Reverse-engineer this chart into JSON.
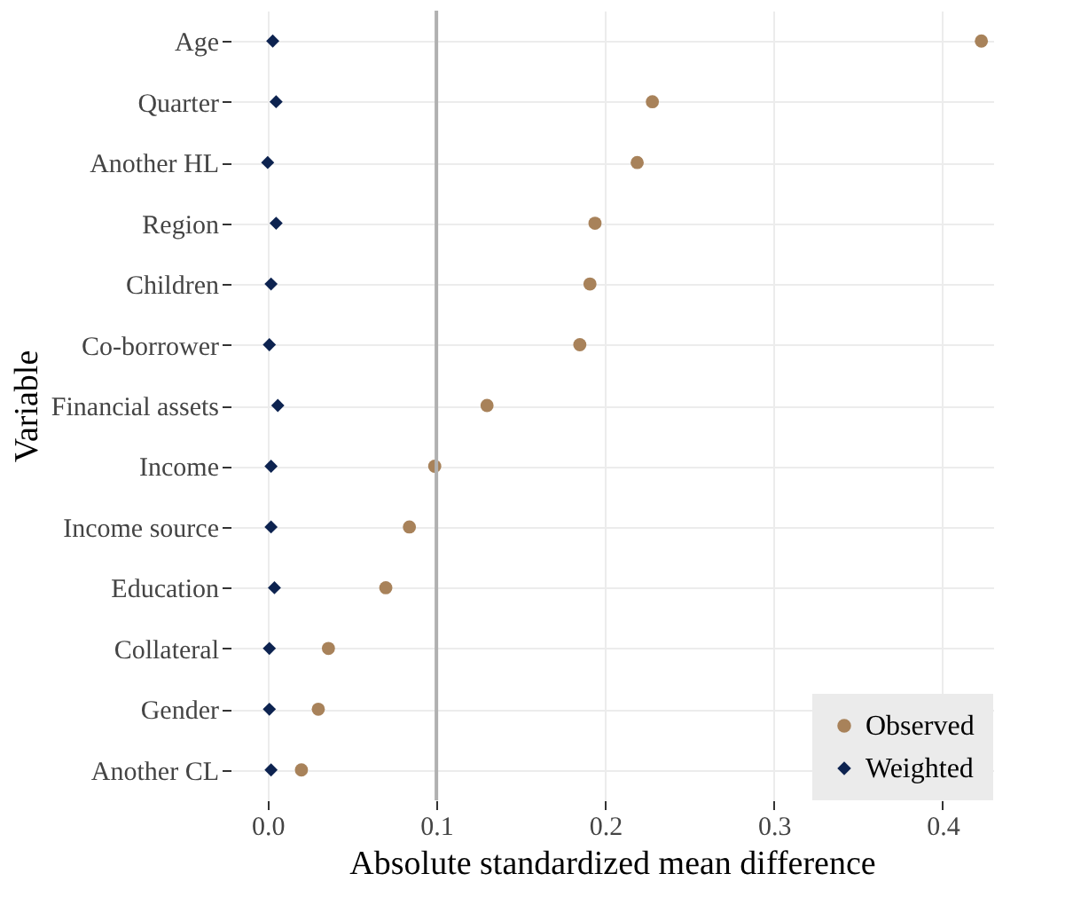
{
  "chart_data": {
    "type": "scatter",
    "orientation": "horizontal",
    "xlabel": "Absolute standardized mean difference",
    "ylabel": "Variable",
    "categories": [
      "Age",
      "Quarter",
      "Another HL",
      "Region",
      "Children",
      "Co-borrower",
      "Financial assets",
      "Income",
      "Income source",
      "Education",
      "Collateral",
      "Gender",
      "Another CL"
    ],
    "series": [
      {
        "name": "Observed",
        "color": "#a8825a",
        "marker": "circle",
        "values": [
          0.423,
          0.228,
          0.219,
          0.194,
          0.191,
          0.185,
          0.13,
          0.099,
          0.084,
          0.07,
          0.036,
          0.03,
          0.02
        ]
      },
      {
        "name": "Weighted",
        "color": "#0d2350",
        "marker": "diamond",
        "values": [
          0.003,
          0.005,
          0.0,
          0.005,
          0.002,
          0.001,
          0.006,
          0.002,
          0.002,
          0.004,
          0.001,
          0.001,
          0.002
        ]
      }
    ],
    "xlim": [
      -0.022,
      0.43
    ],
    "xticks": [
      {
        "value": 0,
        "label": "0.0"
      },
      0.1,
      0.2,
      0.3,
      0.4
    ],
    "ref_lines": [
      {
        "axis": "x",
        "value": 0.1,
        "color": "#b0b0b0"
      }
    ],
    "grid": true,
    "legend": "bottom right"
  }
}
